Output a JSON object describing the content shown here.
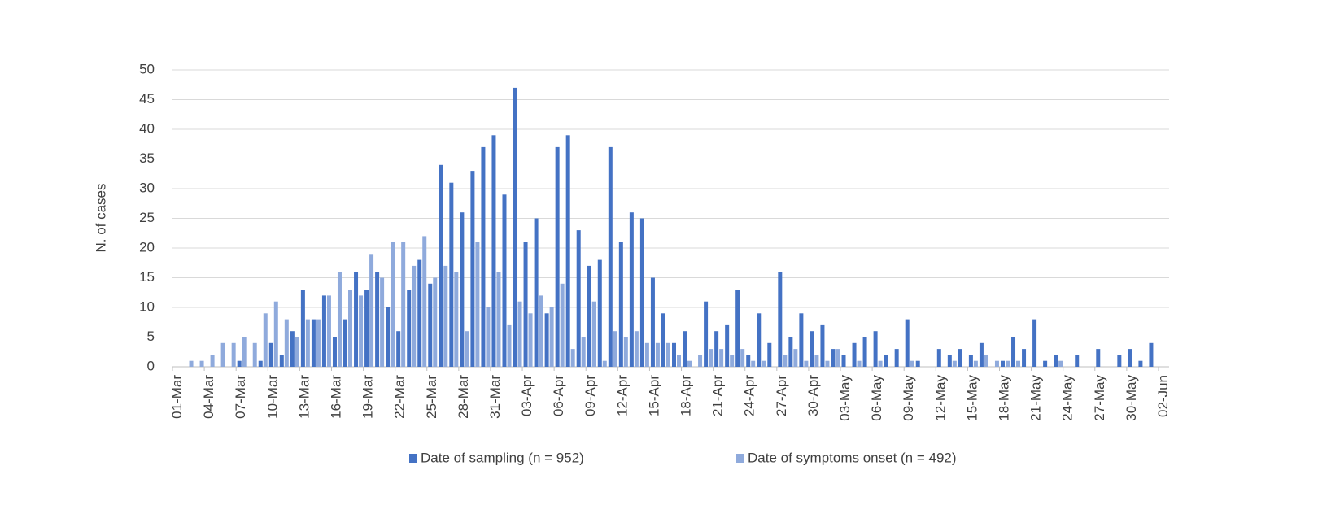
{
  "chart_data": {
    "type": "bar",
    "y_label": "N. of cases",
    "categories": [
      "01-Mar",
      null,
      null,
      "04-Mar",
      null,
      null,
      "07-Mar",
      null,
      null,
      "10-Mar",
      null,
      null,
      "13-Mar",
      null,
      null,
      "16-Mar",
      null,
      null,
      "19-Mar",
      null,
      null,
      "22-Mar",
      null,
      null,
      "25-Mar",
      null,
      null,
      "28-Mar",
      null,
      null,
      "31-Mar",
      null,
      null,
      "03-Apr",
      null,
      null,
      "06-Apr",
      null,
      null,
      "09-Apr",
      null,
      null,
      "12-Apr",
      null,
      null,
      "15-Apr",
      null,
      null,
      "18-Apr",
      null,
      null,
      "21-Apr",
      null,
      null,
      "24-Apr",
      null,
      null,
      "27-Apr",
      null,
      null,
      "30-Apr",
      null,
      null,
      "03-May",
      null,
      null,
      "06-May",
      null,
      null,
      "09-May",
      null,
      null,
      "12-May",
      null,
      null,
      "15-May",
      null,
      null,
      "18-May",
      null,
      null,
      "21-May",
      null,
      null,
      "24-May",
      null,
      null,
      "27-May",
      null,
      null,
      "30-May",
      null,
      null,
      "02-Jun"
    ],
    "series": [
      {
        "name": "Date of sampling (n = 952)",
        "color": "#4472c4",
        "values": [
          0,
          0,
          0,
          0,
          0,
          0,
          1,
          0,
          1,
          4,
          2,
          6,
          13,
          8,
          12,
          5,
          8,
          16,
          13,
          16,
          10,
          6,
          13,
          18,
          14,
          34,
          31,
          26,
          33,
          37,
          39,
          29,
          47,
          21,
          25,
          9,
          37,
          39,
          23,
          17,
          18,
          37,
          21,
          26,
          25,
          15,
          9,
          4,
          6,
          0,
          11,
          6,
          7,
          13,
          2,
          9,
          4,
          16,
          5,
          9,
          6,
          7,
          3,
          2,
          4,
          5,
          6,
          2,
          3,
          8,
          1,
          0,
          3,
          2,
          3,
          2,
          4,
          0,
          1,
          5,
          3,
          8,
          1,
          2,
          0,
          2,
          0,
          3,
          0,
          2,
          3,
          1,
          4,
          0
        ]
      },
      {
        "name": "Date of symptoms onset (n = 492)",
        "color": "#8faadc",
        "values": [
          0,
          1,
          1,
          2,
          4,
          4,
          5,
          4,
          9,
          11,
          8,
          5,
          8,
          8,
          12,
          16,
          13,
          12,
          19,
          15,
          21,
          21,
          17,
          22,
          15,
          17,
          16,
          6,
          21,
          10,
          16,
          7,
          11,
          9,
          12,
          10,
          14,
          3,
          5,
          11,
          1,
          6,
          5,
          6,
          4,
          4,
          4,
          2,
          1,
          2,
          3,
          3,
          2,
          3,
          1,
          1,
          0,
          2,
          3,
          1,
          2,
          1,
          3,
          0,
          1,
          0,
          1,
          0,
          0,
          1,
          0,
          0,
          0,
          1,
          0,
          1,
          2,
          1,
          1,
          1,
          0,
          0,
          0,
          1,
          0,
          0,
          0,
          0,
          0,
          0,
          0,
          0,
          0,
          0
        ]
      }
    ],
    "ylim": [
      0,
      50
    ],
    "yticks": [
      0,
      5,
      10,
      15,
      20,
      25,
      30,
      35,
      40,
      45,
      50
    ],
    "grid": true,
    "legend": "bottom"
  }
}
